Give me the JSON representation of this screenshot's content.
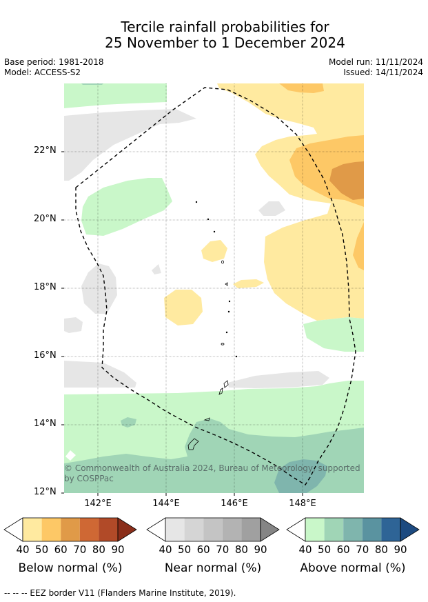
{
  "title_line1": "Tercile rainfall probabilities for",
  "title_line2": "25 November to 1 December 2024",
  "base_period": "Base period: 1981-2018",
  "model": "Model: ACCESS-S2",
  "model_run": "Model run: 11/11/2024",
  "issued": "Issued: 14/11/2024",
  "lat_labels": [
    "22°N",
    "20°N",
    "18°N",
    "16°N",
    "14°N",
    "12°N"
  ],
  "lon_labels": [
    "142°E",
    "144°E",
    "146°E",
    "148°E"
  ],
  "copyright_line1": "© Commonwealth of Australia 2024, Bureau of Meteorology, supported",
  "copyright_line2": "by COSPPac",
  "colorbars": {
    "below": {
      "title": "Below normal (%)",
      "ticks": [
        "40",
        "50",
        "60",
        "70",
        "80",
        "90"
      ],
      "colors": [
        "#ffeaa0",
        "#fdc866",
        "#e09a48",
        "#cf6834",
        "#b14a28",
        "#8a2e1a"
      ]
    },
    "near": {
      "title": "Near normal (%)",
      "ticks": [
        "40",
        "50",
        "60",
        "70",
        "80",
        "90"
      ],
      "colors": [
        "#e6e6e6",
        "#d5d5d5",
        "#c4c4c4",
        "#b3b3b3",
        "#a0a0a0",
        "#858585"
      ]
    },
    "above": {
      "title": "Above normal (%)",
      "ticks": [
        "40",
        "50",
        "60",
        "70",
        "80",
        "90"
      ],
      "colors": [
        "#c9f7c9",
        "#a0d5b6",
        "#7fb5ad",
        "#5a93a0",
        "#2e6496",
        "#1c4a80"
      ]
    }
  },
  "footnote": "--  --  -- EEZ border V11 (Flanders Marine Institute, 2019)."
}
